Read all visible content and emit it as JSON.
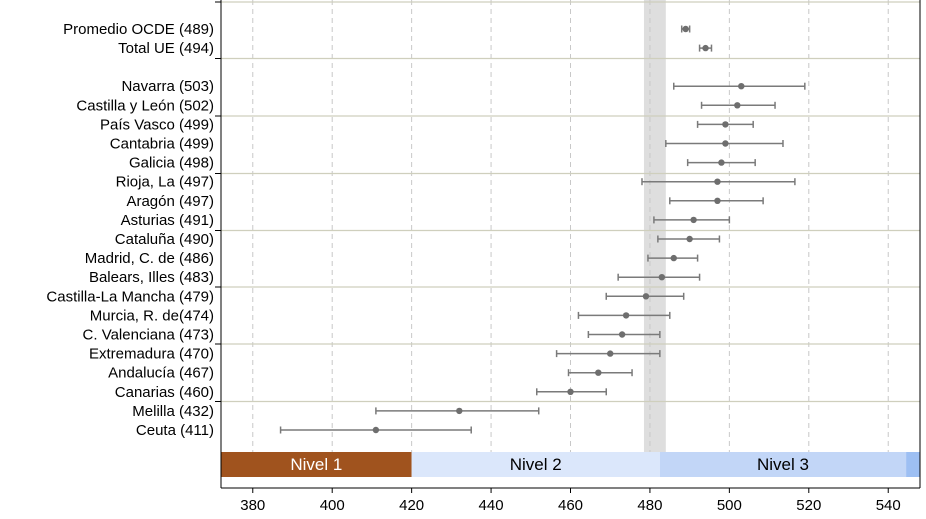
{
  "chart_data": {
    "type": "scatter",
    "subtype": "point-with-error-bars",
    "x_axis": {
      "ticks": [
        380,
        400,
        420,
        440,
        460,
        480,
        500,
        520,
        540
      ],
      "range": [
        372,
        548
      ],
      "grid": "vertical dashed"
    },
    "reference_band": {
      "from": 478.5,
      "to": 484,
      "color": "#dedede"
    },
    "groups": [
      {
        "rows": [
          {
            "label": "Promedio OCDE (489)",
            "value": 489,
            "low": 488,
            "high": 490
          },
          {
            "label": "Total UE (494)",
            "value": 494,
            "low": 492.5,
            "high": 495.5
          }
        ]
      },
      {
        "rows": [
          {
            "label": "Navarra (503)",
            "value": 503,
            "low": 486,
            "high": 519
          },
          {
            "label": "Castilla y León (502)",
            "value": 502,
            "low": 493,
            "high": 511.5
          },
          {
            "label": "País Vasco (499)",
            "value": 499,
            "low": 492,
            "high": 506
          },
          {
            "label": "Cantabria (499)",
            "value": 499,
            "low": 484,
            "high": 513.5
          },
          {
            "label": "Galicia (498)",
            "value": 498,
            "low": 489.5,
            "high": 506.5
          },
          {
            "label": "Rioja, La (497)",
            "value": 497,
            "low": 478,
            "high": 516.5
          },
          {
            "label": "Aragón (497)",
            "value": 497,
            "low": 485,
            "high": 508.5
          },
          {
            "label": "Asturias (491)",
            "value": 491,
            "low": 481,
            "high": 500
          },
          {
            "label": "Cataluña (490)",
            "value": 490,
            "low": 482,
            "high": 497.5
          },
          {
            "label": "Madrid, C. de (486)",
            "value": 486,
            "low": 479.5,
            "high": 492
          },
          {
            "label": "Balears, Illes (483)",
            "value": 483,
            "low": 472,
            "high": 492.5
          },
          {
            "label": "Castilla-La Mancha (479)",
            "value": 479,
            "low": 469,
            "high": 488.5
          },
          {
            "label": "Murcia, R. de(474)",
            "value": 474,
            "low": 462,
            "high": 485
          },
          {
            "label": "C. Valenciana (473)",
            "value": 473,
            "low": 464.5,
            "high": 482.5
          },
          {
            "label": "Extremadura (470)",
            "value": 470,
            "low": 456.5,
            "high": 482.5
          },
          {
            "label": "Andalucía (467)",
            "value": 467,
            "low": 459.5,
            "high": 475.5
          },
          {
            "label": "Canarias  (460)",
            "value": 460,
            "low": 451.5,
            "high": 469
          },
          {
            "label": "Melilla (432)",
            "value": 432,
            "low": 411,
            "high": 452
          },
          {
            "label": "Ceuta (411)",
            "value": 411,
            "low": 387,
            "high": 435
          }
        ]
      }
    ],
    "levels": [
      {
        "label": "Nivel 1",
        "from": 372,
        "to": 420,
        "color": "#a0531e",
        "text_color": "#ffffff"
      },
      {
        "label": "Nivel 2",
        "from": 420,
        "to": 482.5,
        "color": "#dbe7fb",
        "text_color": "#000000"
      },
      {
        "label": "Nivel 3",
        "from": 482.5,
        "to": 544.5,
        "color": "#c2d6f7",
        "text_color": "#000000"
      },
      {
        "label": "",
        "from": 544.5,
        "to": 548,
        "color": "#9dbff3",
        "text_color": "#000000"
      }
    ],
    "colors": {
      "point": "#6e6e6e",
      "error_bar": "#7a7a7a",
      "separator": "#cfcfbd",
      "grid": "#c8c8c8"
    }
  }
}
